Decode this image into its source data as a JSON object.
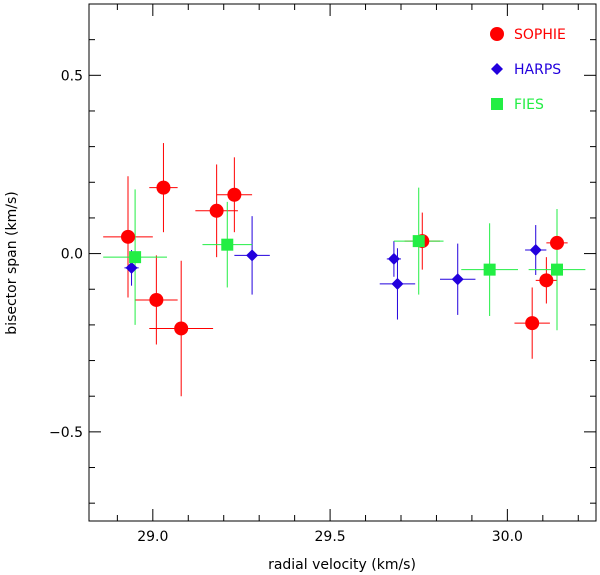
{
  "chart_data": {
    "type": "scatter",
    "title": "",
    "xlabel": "radial velocity (km/s)",
    "ylabel": "bisector span (km/s)",
    "xlim": [
      28.82,
      30.25
    ],
    "ylim": [
      -0.75,
      0.7
    ],
    "x_ticks": [
      {
        "value": 29.0,
        "label": "29.0"
      },
      {
        "value": 29.5,
        "label": "29.5"
      },
      {
        "value": 30.0,
        "label": "30.0"
      }
    ],
    "y_ticks": [
      {
        "value": 0.5,
        "label": "0.5"
      },
      {
        "value": 0.0,
        "label": "0.0"
      },
      {
        "value": -0.5,
        "label": "−0.5"
      }
    ],
    "x_minor_step": 0.1,
    "y_minor_step": 0.1,
    "grid": false,
    "legend_position": "top-right",
    "series": [
      {
        "name": "SOPHIE",
        "marker": "circle",
        "color": "#ff0000",
        "points": [
          {
            "x": 28.93,
            "y": 0.047,
            "xerr": 0.07,
            "yerr": 0.17
          },
          {
            "x": 29.03,
            "y": 0.185,
            "xerr": 0.04,
            "yerr": 0.125
          },
          {
            "x": 29.01,
            "y": -0.13,
            "xerr": 0.06,
            "yerr": 0.125
          },
          {
            "x": 29.08,
            "y": -0.21,
            "xerr": 0.09,
            "yerr": 0.19
          },
          {
            "x": 29.18,
            "y": 0.12,
            "xerr": 0.06,
            "yerr": 0.13
          },
          {
            "x": 29.23,
            "y": 0.165,
            "xerr": 0.05,
            "yerr": 0.105
          },
          {
            "x": 29.76,
            "y": 0.035,
            "xerr": 0.05,
            "yerr": 0.08
          },
          {
            "x": 30.07,
            "y": -0.195,
            "xerr": 0.05,
            "yerr": 0.1
          },
          {
            "x": 30.11,
            "y": -0.075,
            "xerr": 0.03,
            "yerr": 0.065
          },
          {
            "x": 30.14,
            "y": 0.03,
            "xerr": 0.03,
            "yerr": 0.09
          }
        ]
      },
      {
        "name": "HARPS",
        "marker": "diamond",
        "color": "#2200dd",
        "points": [
          {
            "x": 28.94,
            "y": -0.04,
            "xerr": 0.02,
            "yerr": 0.05
          },
          {
            "x": 29.28,
            "y": -0.005,
            "xerr": 0.05,
            "yerr": 0.11
          },
          {
            "x": 29.68,
            "y": -0.015,
            "xerr": 0.02,
            "yerr": 0.05
          },
          {
            "x": 29.69,
            "y": -0.085,
            "xerr": 0.05,
            "yerr": 0.1
          },
          {
            "x": 29.86,
            "y": -0.072,
            "xerr": 0.05,
            "yerr": 0.1
          },
          {
            "x": 30.08,
            "y": 0.01,
            "xerr": 0.03,
            "yerr": 0.07
          }
        ]
      },
      {
        "name": "FIES",
        "marker": "square",
        "color": "#22ee44",
        "points": [
          {
            "x": 28.95,
            "y": -0.01,
            "xerr": 0.09,
            "yerr": 0.19
          },
          {
            "x": 29.21,
            "y": 0.025,
            "xerr": 0.07,
            "yerr": 0.12
          },
          {
            "x": 29.75,
            "y": 0.035,
            "xerr": 0.07,
            "yerr": 0.15
          },
          {
            "x": 29.95,
            "y": -0.045,
            "xerr": 0.08,
            "yerr": 0.13
          },
          {
            "x": 30.14,
            "y": -0.045,
            "xerr": 0.08,
            "yerr": 0.17
          }
        ]
      }
    ]
  }
}
